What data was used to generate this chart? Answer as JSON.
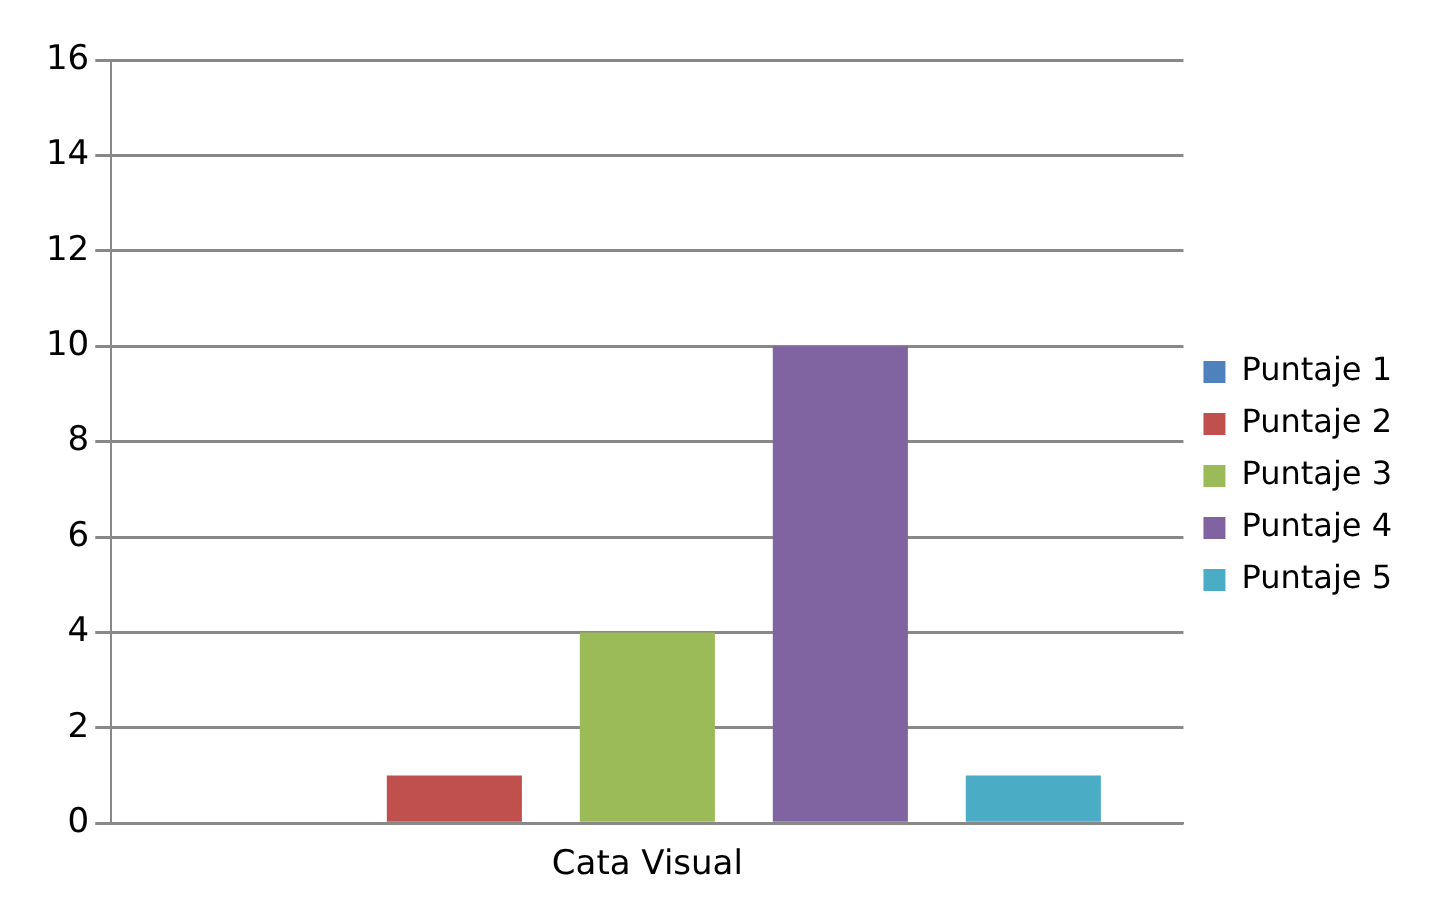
{
  "chart_data": {
    "type": "bar",
    "categories": [
      "Cata Visual"
    ],
    "series": [
      {
        "name": "Puntaje 1",
        "color": "#4f81bd",
        "values": [
          0
        ]
      },
      {
        "name": "Puntaje 2",
        "color": "#c0504d",
        "values": [
          1
        ]
      },
      {
        "name": "Puntaje 3",
        "color": "#9bbb59",
        "values": [
          4
        ]
      },
      {
        "name": "Puntaje 4",
        "color": "#8064a2",
        "values": [
          10
        ]
      },
      {
        "name": "Puntaje 5",
        "color": "#4bacc6",
        "values": [
          1
        ]
      }
    ],
    "ylim": [
      0,
      16
    ],
    "yticks": [
      0,
      2,
      4,
      6,
      8,
      10,
      12,
      14,
      16
    ],
    "grid": "y",
    "legend": "right"
  }
}
